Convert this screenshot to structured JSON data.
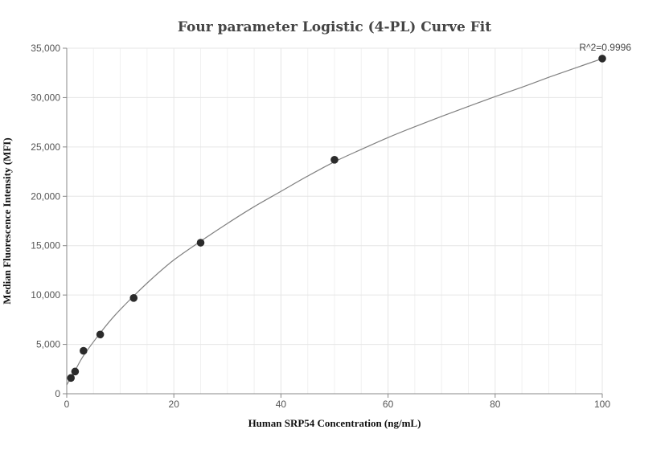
{
  "chart_data": {
    "type": "scatter",
    "title": "Four parameter Logistic (4-PL) Curve Fit",
    "xlabel": "Human SRP54 Concentration (ng/mL)",
    "ylabel": "Median Fluorescence Intensity (MFI)",
    "xlim": [
      0,
      100
    ],
    "ylim": [
      0,
      35000
    ],
    "x_ticks": [
      0,
      20,
      40,
      60,
      80,
      100
    ],
    "y_ticks": [
      0,
      5000,
      10000,
      15000,
      20000,
      25000,
      30000,
      35000
    ],
    "x_tick_labels": [
      "0",
      "20",
      "40",
      "60",
      "80",
      "100"
    ],
    "y_tick_labels": [
      "0",
      "5,000",
      "10,000",
      "15,000",
      "20,000",
      "25,000",
      "30,000",
      "35,000"
    ],
    "grid": true,
    "points": [
      {
        "x": 0.78,
        "y": 1600
      },
      {
        "x": 1.56,
        "y": 2250
      },
      {
        "x": 3.13,
        "y": 4350
      },
      {
        "x": 6.25,
        "y": 6000
      },
      {
        "x": 12.5,
        "y": 9700
      },
      {
        "x": 25,
        "y": 15300
      },
      {
        "x": 50,
        "y": 23700
      },
      {
        "x": 100,
        "y": 33950
      }
    ],
    "fit_curve": {
      "model": "4-PL",
      "x": [
        0,
        0.78,
        1.56,
        3.13,
        6.25,
        9,
        12.5,
        16,
        20,
        25,
        30,
        35,
        40,
        45,
        50,
        55,
        60,
        65,
        70,
        75,
        80,
        85,
        90,
        95,
        100
      ],
      "y": [
        900,
        1650,
        2350,
        3850,
        6150,
        7950,
        9900,
        11700,
        13550,
        15450,
        17250,
        18950,
        20500,
        22050,
        23500,
        24750,
        25950,
        27050,
        28100,
        29100,
        30100,
        31050,
        32050,
        33000,
        33950
      ]
    },
    "annotation": "R^2=0.9996",
    "colors": {
      "point": "#2b2b2b",
      "curve": "#808080",
      "grid": "#e6e6e6",
      "axis": "#888888"
    }
  }
}
